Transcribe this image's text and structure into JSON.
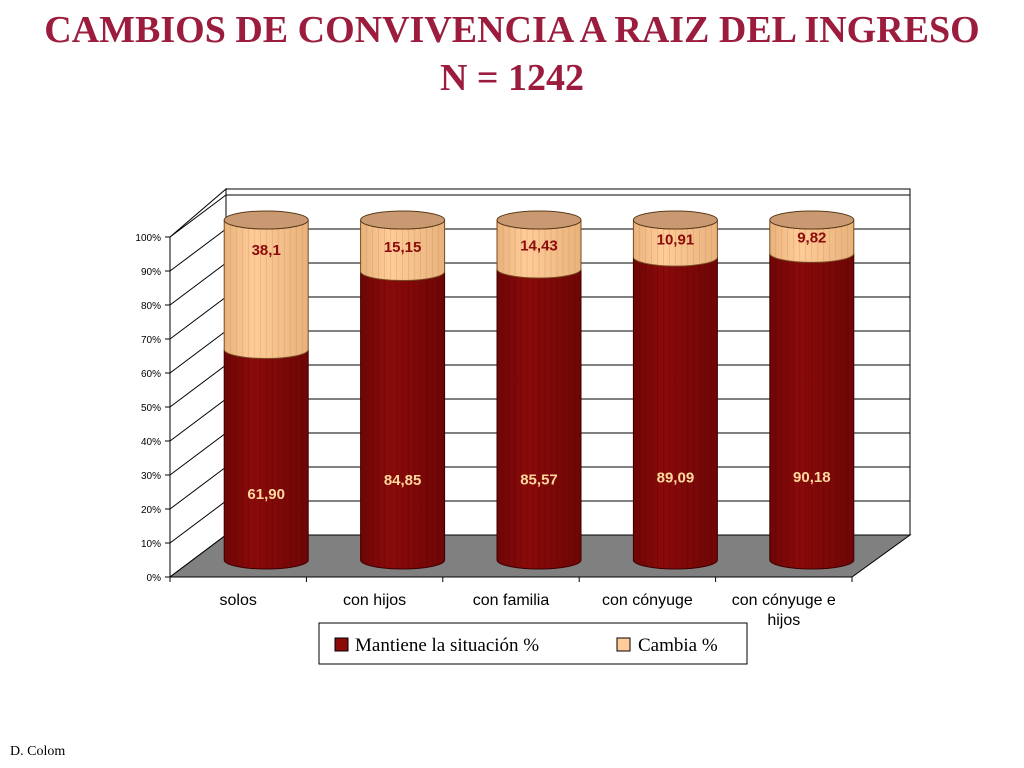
{
  "header": {
    "title": "CAMBIOS DE CONVIVENCIA A RAIZ DEL INGRESO",
    "subtitle": "N = 1242"
  },
  "footer": {
    "author": "D. Colom"
  },
  "chart_data": {
    "type": "bar",
    "stacked": true,
    "percent_stacked": true,
    "three_d": true,
    "categories": [
      "solos",
      "con  hijos",
      "con familia",
      "con cónyuge",
      "con cónyuge e hijos"
    ],
    "series": [
      {
        "name": "Mantiene la situación %",
        "values": [
          61.9,
          84.85,
          85.57,
          89.09,
          90.18
        ],
        "labels": [
          "61,90",
          "84,85",
          "85,57",
          "89,09",
          "90,18"
        ],
        "color": "#8b0a0a",
        "label_color": "#ffd89e"
      },
      {
        "name": "Cambia %",
        "values": [
          38.1,
          15.15,
          14.43,
          10.91,
          9.82
        ],
        "labels": [
          "38,1",
          "15,15",
          "14,43",
          "10,91",
          "9,82"
        ],
        "color": "#ffcc99",
        "label_color": "#8b0a0a"
      }
    ],
    "yticks": [
      "0%",
      "10%",
      "20%",
      "30%",
      "40%",
      "50%",
      "60%",
      "70%",
      "80%",
      "90%",
      "100%"
    ],
    "ylim": [
      0,
      100
    ],
    "grid": true,
    "legend_position": "bottom"
  }
}
